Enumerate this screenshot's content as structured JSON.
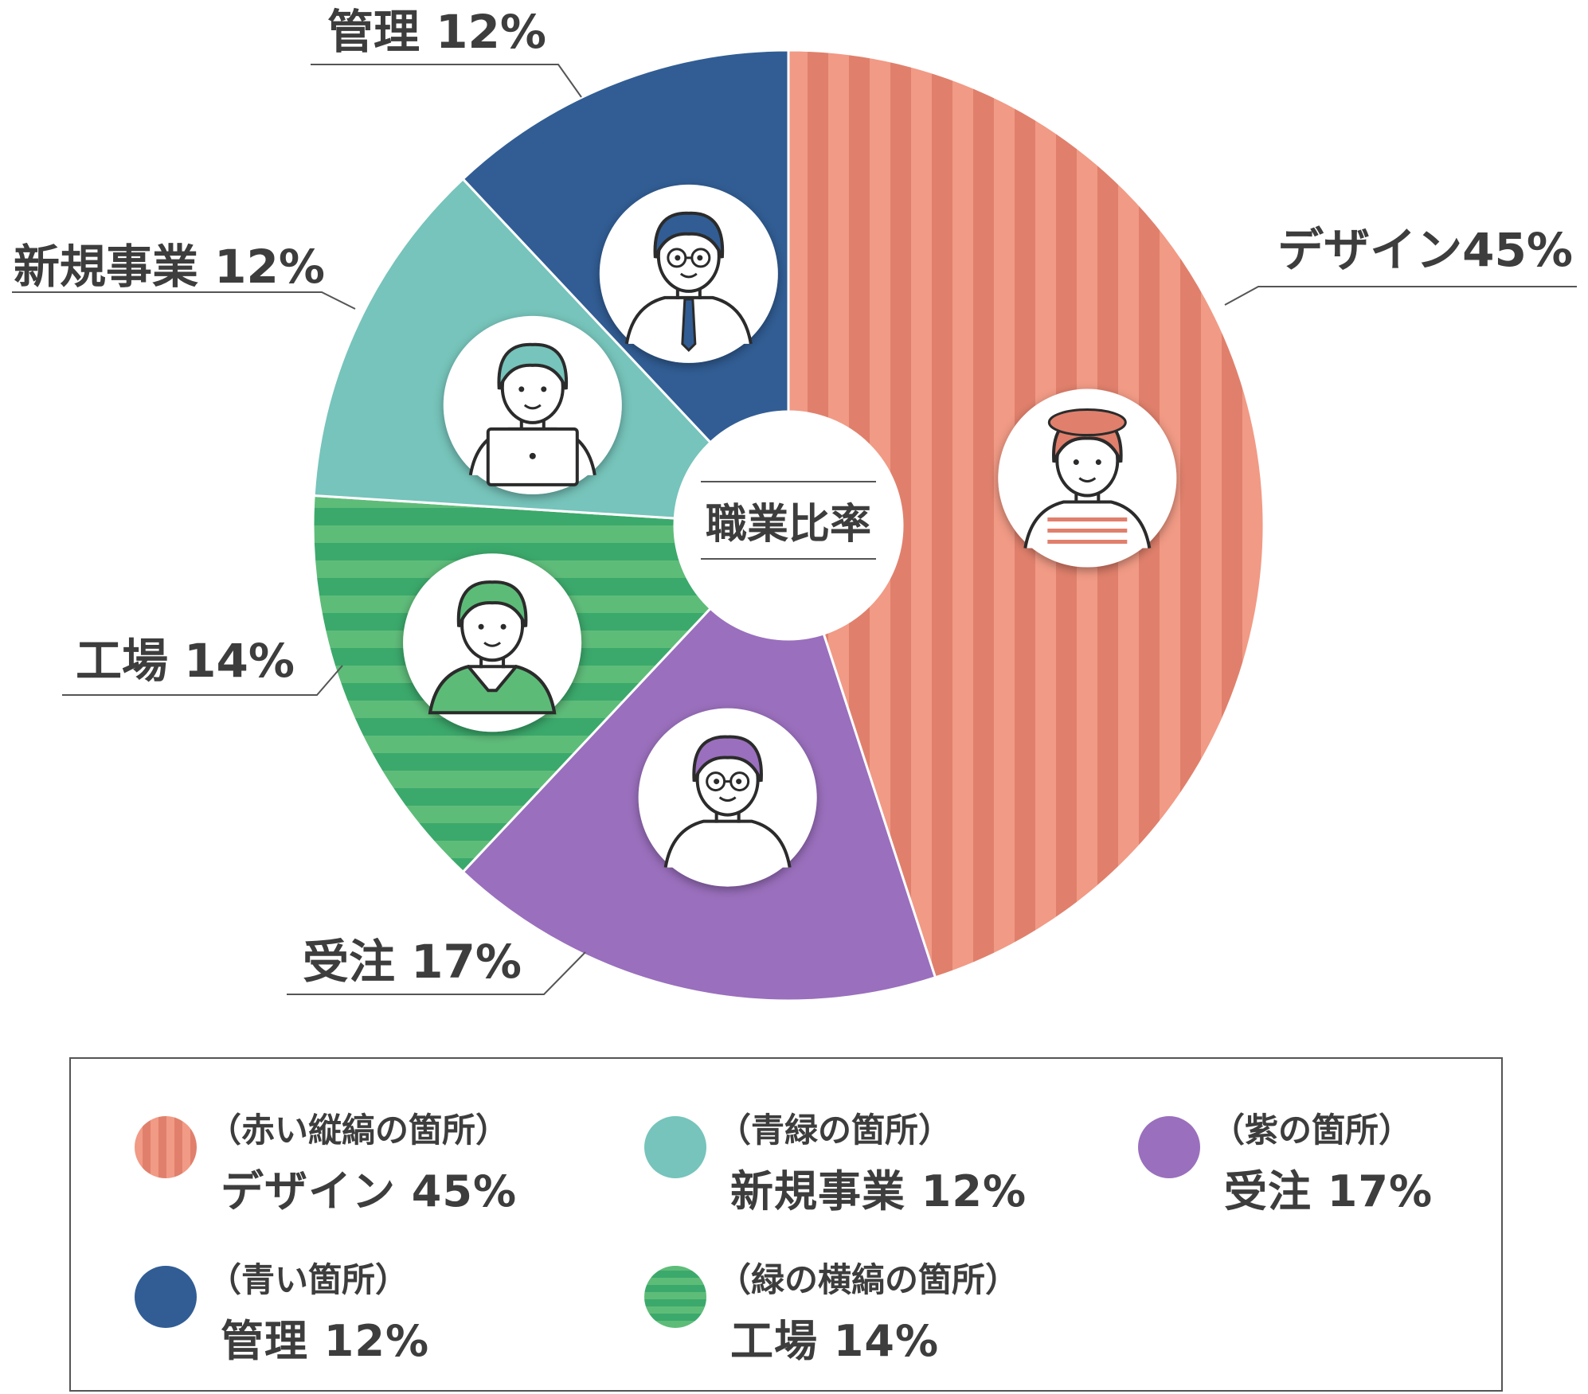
{
  "chart_data": {
    "type": "pie",
    "center_label": "職業比率",
    "slices": [
      {
        "label": "デザイン45%",
        "name": "デザイン",
        "value": 45,
        "color": "#f19a85",
        "stripe": "vertical",
        "stripe_color": "#e07f6c",
        "icon": "designer-with-beret-icon"
      },
      {
        "label": "受注 17%",
        "name": "受注",
        "value": 17,
        "color": "#9a6fbd",
        "stripe": "none",
        "icon": "man-with-glasses-purple-hair-icon"
      },
      {
        "label": "工場 14%",
        "name": "工場",
        "value": 14,
        "color": "#5dbb78",
        "stripe": "horizontal",
        "stripe_color": "#3aa96a",
        "icon": "factory-worker-icon"
      },
      {
        "label": "新規事業 12%",
        "name": "新規事業",
        "value": 12,
        "color": "#76c4bb",
        "stripe": "none",
        "icon": "person-with-laptop-icon"
      },
      {
        "label": "管理 12%",
        "name": "管理",
        "value": 12,
        "color": "#315d94",
        "stripe": "none",
        "icon": "manager-with-tie-icon"
      }
    ]
  },
  "legend": [
    {
      "note": "（赤い縦縞の箇所）",
      "text": "デザイン 45%"
    },
    {
      "note": "（青緑の箇所）",
      "text": "新規事業 12%"
    },
    {
      "note": "（紫の箇所）",
      "text": "受注 17%"
    },
    {
      "note": "（青い箇所）",
      "text": "管理 12%"
    },
    {
      "note": "（緑の横縞の箇所）",
      "text": "工場 14%"
    }
  ]
}
